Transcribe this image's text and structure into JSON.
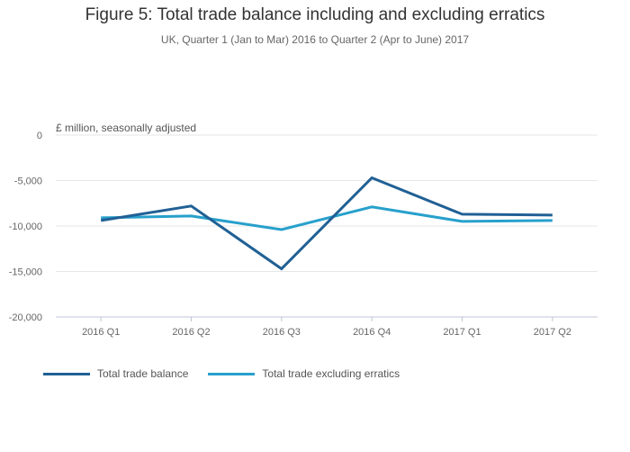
{
  "chart_data": {
    "type": "line",
    "title": "Figure 5: Total trade balance including and excluding erratics",
    "subtitle": "UK, Quarter 1 (Jan to Mar) 2016 to Quarter 2 (Apr to June) 2017",
    "ylabel": "£ million, seasonally adjusted",
    "xlabel": "",
    "categories": [
      "2016 Q1",
      "2016 Q2",
      "2016 Q3",
      "2016 Q4",
      "2017 Q1",
      "2017 Q2"
    ],
    "ylim": [
      -20000,
      0
    ],
    "yticks": [
      0,
      -5000,
      -10000,
      -15000,
      -20000
    ],
    "ytick_labels": [
      "0",
      "-5,000",
      "-10,000",
      "-15,000",
      "-20,000"
    ],
    "grid": true,
    "legend_position": "bottom-left",
    "series": [
      {
        "name": "Total trade balance",
        "color": "#206095",
        "values": [
          -9400,
          -7800,
          -14700,
          -4700,
          -8700,
          -8800
        ]
      },
      {
        "name": "Total trade excluding erratics",
        "color": "#27a0cc",
        "values": [
          -9100,
          -8900,
          -10400,
          -7900,
          -9500,
          -9400
        ]
      }
    ]
  }
}
